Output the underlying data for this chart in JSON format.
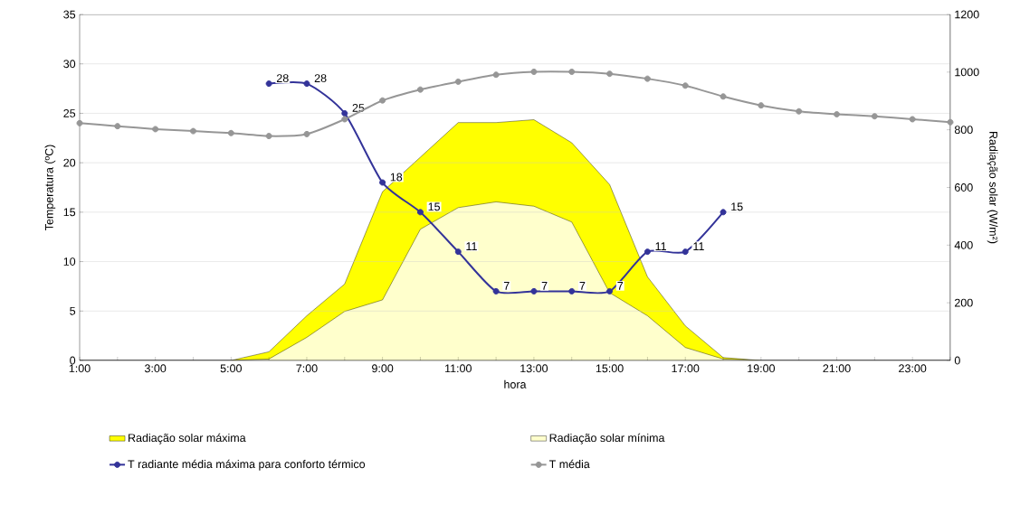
{
  "chart_data": {
    "type": "line",
    "xlabel": "hora",
    "ylabel": "Temperatura (ºC)",
    "y2label": "Radiação solar  (W/m²)",
    "categories": [
      "1:00",
      null,
      "3:00",
      null,
      "5:00",
      null,
      "7:00",
      null,
      "9:00",
      null,
      "11:00",
      null,
      "13:00",
      null,
      "15:00",
      null,
      "17:00",
      null,
      "19:00",
      null,
      "21:00",
      null,
      "23:00",
      null
    ],
    "series": [
      {
        "name": "Radiação solar máxima",
        "type": "area",
        "axis": "y2",
        "color": "#ffff00",
        "values": [
          0,
          0,
          0,
          0,
          0,
          30,
          155,
          265,
          585,
          705,
          825,
          825,
          835,
          755,
          610,
          290,
          120,
          10,
          0,
          0,
          0,
          0,
          0,
          0
        ]
      },
      {
        "name": "Radiação solar mínima",
        "type": "area",
        "axis": "y2",
        "color": "#ffffcc",
        "values": [
          0,
          0,
          0,
          0,
          0,
          5,
          80,
          170,
          210,
          455,
          530,
          550,
          535,
          480,
          235,
          155,
          45,
          5,
          0,
          0,
          0,
          0,
          0,
          0
        ]
      },
      {
        "name": "T radiante média máxima para conforto térmico",
        "marker": "circle",
        "color": "#333399",
        "values": [
          null,
          null,
          null,
          null,
          null,
          28,
          28,
          25,
          18,
          15,
          11,
          7,
          7,
          7,
          7,
          11,
          11,
          15,
          null,
          null,
          null,
          null,
          null,
          null
        ],
        "value_labels": [
          null,
          null,
          null,
          null,
          null,
          "28",
          "28",
          "25",
          "18",
          "15",
          "11",
          "7",
          "7",
          "7",
          "7",
          "11",
          "11",
          "15",
          null,
          null,
          null,
          null,
          null,
          null
        ]
      },
      {
        "name": "T média",
        "marker": "circle",
        "color": "#969696",
        "values": [
          24.0,
          23.7,
          23.4,
          23.2,
          23.0,
          22.7,
          22.9,
          24.4,
          26.3,
          27.4,
          28.2,
          28.9,
          29.2,
          29.2,
          29.0,
          28.5,
          27.8,
          26.7,
          25.8,
          25.2,
          24.9,
          24.7,
          24.4,
          24.1
        ]
      }
    ],
    "ylim": [
      0,
      35
    ],
    "yticks": [
      0,
      5,
      10,
      15,
      20,
      25,
      30,
      35
    ],
    "y2lim": [
      0,
      1200
    ],
    "y2ticks": [
      0,
      200,
      400,
      600,
      800,
      1000,
      1200
    ],
    "grid": "y",
    "legend": "bottom"
  }
}
